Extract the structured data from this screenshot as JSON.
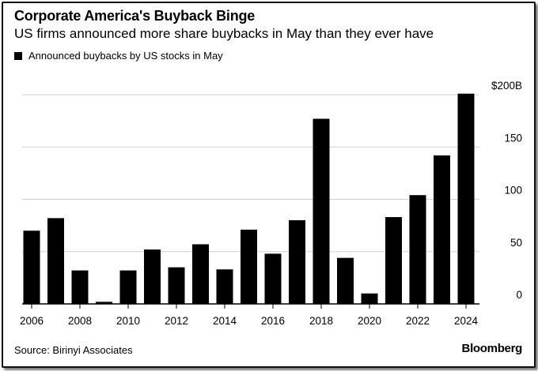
{
  "title": "Corporate America's Buyback Binge",
  "subtitle": "US firms announced more share buybacks in May than they ever have",
  "legend_label": "Announced buybacks by US stocks in May",
  "source": "Source: Birinyi Associates",
  "brand": "Bloomberg",
  "colors": {
    "bar": "#000000",
    "grid": "#d0d0d0",
    "axis": "#000000"
  },
  "chart_data": {
    "type": "bar",
    "title": "Corporate America's Buyback Binge",
    "xlabel": "",
    "ylabel": "",
    "categories": [
      "2006",
      "2007",
      "2008",
      "2009",
      "2010",
      "2011",
      "2012",
      "2013",
      "2014",
      "2015",
      "2016",
      "2017",
      "2018",
      "2019",
      "2020",
      "2021",
      "2022",
      "2023",
      "2024"
    ],
    "values": [
      70,
      82,
      32,
      2,
      32,
      52,
      35,
      57,
      33,
      71,
      48,
      80,
      177,
      44,
      10,
      83,
      104,
      142,
      201
    ],
    "ylim": [
      0,
      200
    ],
    "yticks": [
      0,
      50,
      100,
      150,
      200
    ],
    "ytick_labels": [
      "0",
      "50",
      "100",
      "150",
      "$200B"
    ],
    "xtick_labels": [
      "2006",
      "2008",
      "2010",
      "2012",
      "2014",
      "2016",
      "2018",
      "2020",
      "2022",
      "2024"
    ],
    "series": [
      {
        "name": "Announced buybacks by US stocks in May",
        "values": [
          70,
          82,
          32,
          2,
          32,
          52,
          35,
          57,
          33,
          71,
          48,
          80,
          177,
          44,
          10,
          83,
          104,
          142,
          201
        ]
      }
    ]
  }
}
